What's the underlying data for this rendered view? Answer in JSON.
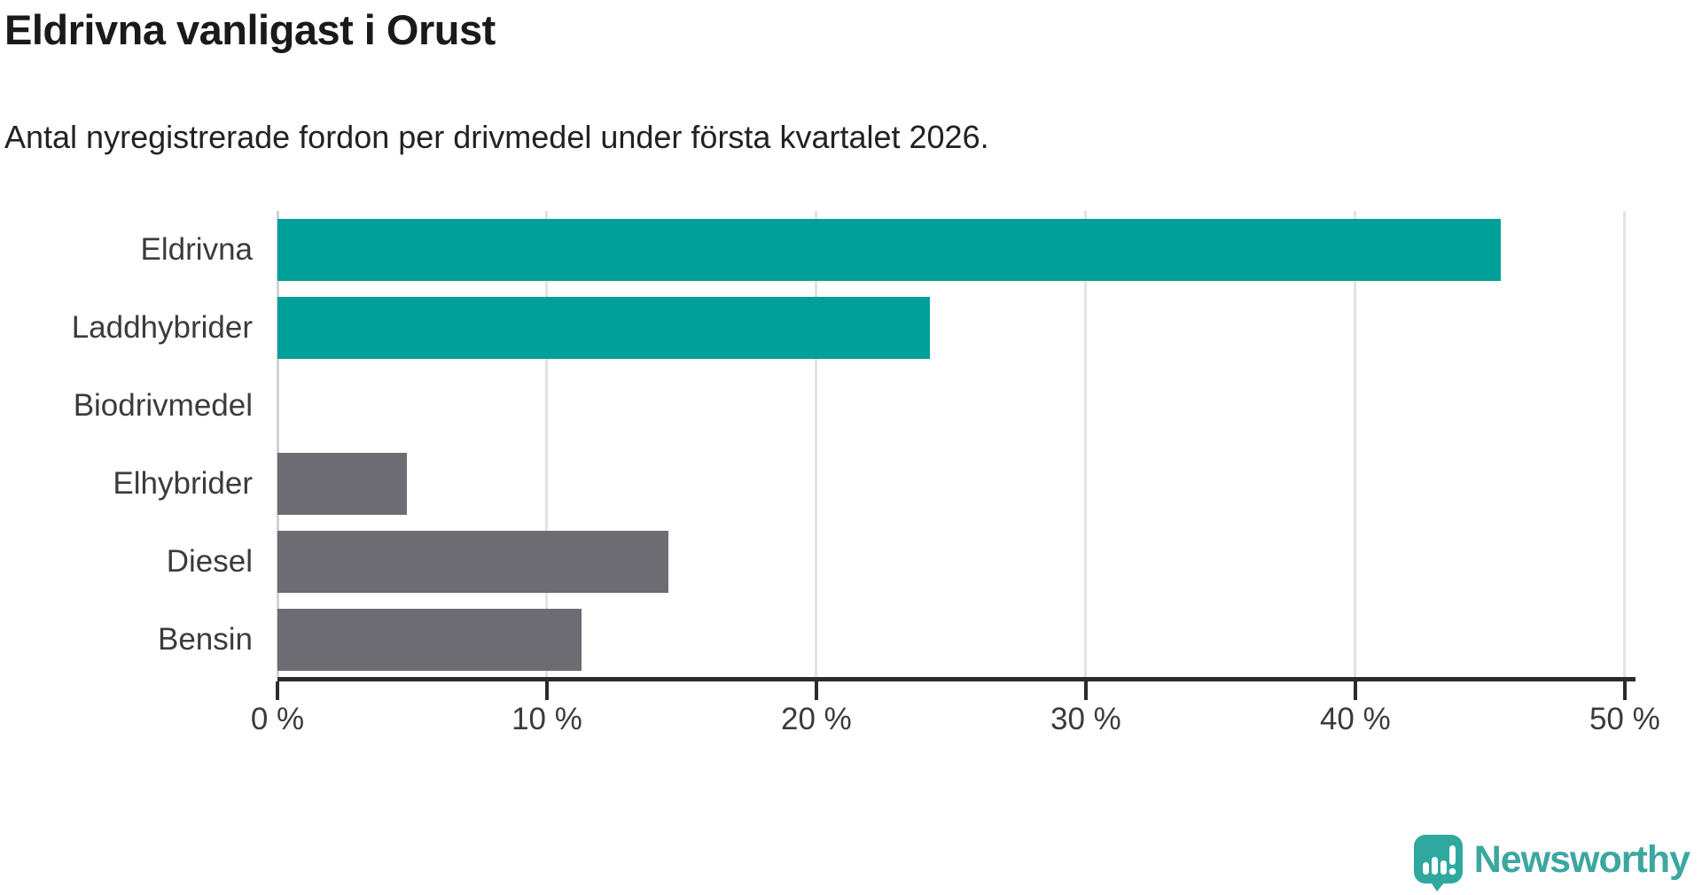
{
  "chart_data": {
    "type": "bar",
    "orientation": "horizontal",
    "title": "Eldrivna vanligast i Orust",
    "subtitle": "Antal nyregistrerade fordon per drivmedel under första kvartalet 2026.",
    "categories": [
      "Eldrivna",
      "Laddhybrider",
      "Biodrivmedel",
      "Elhybrider",
      "Diesel",
      "Bensin"
    ],
    "values": [
      45.4,
      24.2,
      0,
      4.8,
      14.5,
      11.3
    ],
    "unit": "%",
    "bar_colors": [
      "#00A099",
      "#00A099",
      "#6C6C72",
      "#6C6C72",
      "#6C6C72",
      "#6C6C72"
    ],
    "xlim": [
      0,
      50.4
    ],
    "x_ticks": [
      0,
      10,
      20,
      30,
      40,
      50
    ],
    "x_tick_labels": [
      "0 %",
      "10 %",
      "20 %",
      "30 %",
      "40 %",
      "50 %"
    ],
    "grid": "vertical",
    "legend": "none"
  },
  "branding": {
    "wordmark": "Newsworthy",
    "icon": "newsworthy-speech-bubble-chart-icon",
    "brand_color": "#3BA79F",
    "icon_color": "#2FA89F"
  },
  "colors": {
    "teal_bar": "#00A099",
    "gray_bar": "#6C6C72",
    "axis": "#2B2B2B",
    "gridline": "#E3E3E3",
    "label_text": "#3B3B3B",
    "title_text": "#1A1A1A",
    "background": "#FFFFFF"
  }
}
